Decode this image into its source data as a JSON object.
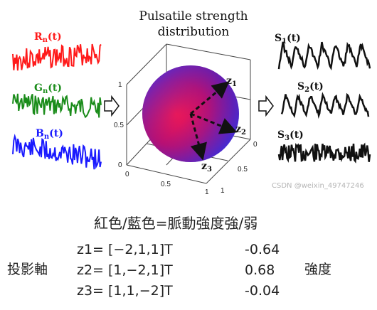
{
  "figure": {
    "title_line1": "Pulsatile strength",
    "title_line2": "distribution",
    "inputs": [
      {
        "name": "R",
        "sub": "n",
        "arg": "(t)",
        "color": "#ff1a1a",
        "seed": 3
      },
      {
        "name": "G",
        "sub": "n",
        "arg": "(t)",
        "color": "#1a8c1a",
        "seed": 7
      },
      {
        "name": "B",
        "sub": "n",
        "arg": "(t)",
        "color": "#1a1aff",
        "seed": 11
      }
    ],
    "outputs": [
      {
        "name": "S",
        "sub": "1",
        "arg": "(t)"
      },
      {
        "name": "S",
        "sub": "2",
        "arg": "(t)"
      },
      {
        "name": "S",
        "sub": "3",
        "arg": "(t)"
      }
    ],
    "axis_vectors": [
      {
        "name": "z",
        "sub": "1"
      },
      {
        "name": "z",
        "sub": "2"
      },
      {
        "name": "z",
        "sub": "3"
      }
    ],
    "ticks": {
      "vertical": [
        "1",
        "0.5",
        "0"
      ],
      "depth": [
        "0",
        "0.5",
        "1"
      ],
      "bottom": [
        "0",
        "0.5",
        "1"
      ]
    },
    "watermark": "CSDN @weixin_49747246"
  },
  "caption": "紅色/藍色=脈動強度強/弱",
  "table": {
    "left_label": "投影軸",
    "right_label": "強度",
    "rows": [
      {
        "axis": "z1= [−2,1,1]T",
        "value": "-0.64"
      },
      {
        "axis": "z2= [1,−2,1]T",
        "value": "0.68"
      },
      {
        "axis": "z3= [1,1,−2]T",
        "value": "-0.04"
      }
    ]
  }
}
